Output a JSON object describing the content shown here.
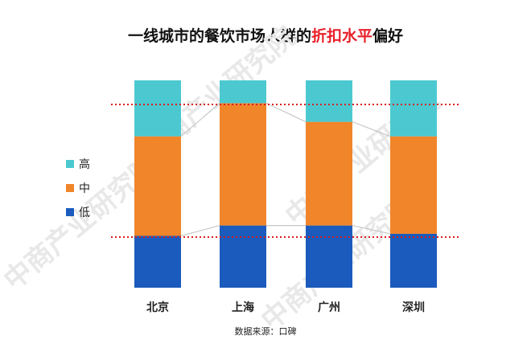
{
  "title": {
    "prefix": "一线城市的餐饮市场人群的",
    "highlight": "折扣水平",
    "suffix": "偏好"
  },
  "source": "数据来源：口碑",
  "colors": {
    "high": "#4cc9d0",
    "mid": "#f0852a",
    "low": "#1a5bbd",
    "highlight": "#e8202a",
    "ref_line": "#dd1e1e",
    "connector": "#c8c8c8"
  },
  "chart_data": {
    "type": "bar",
    "stacked": true,
    "categories": [
      "北京",
      "上海",
      "广州",
      "深圳"
    ],
    "series": [
      {
        "name": "低",
        "values": [
          25,
          30,
          30,
          26
        ]
      },
      {
        "name": "中",
        "values": [
          48,
          59,
          50,
          47
        ]
      },
      {
        "name": "高",
        "values": [
          27,
          11,
          20,
          27
        ]
      }
    ],
    "legend_position": "left",
    "grid": false,
    "reference_lines": "two dotted horizontal lines",
    "ylim": [
      0,
      100
    ]
  }
}
